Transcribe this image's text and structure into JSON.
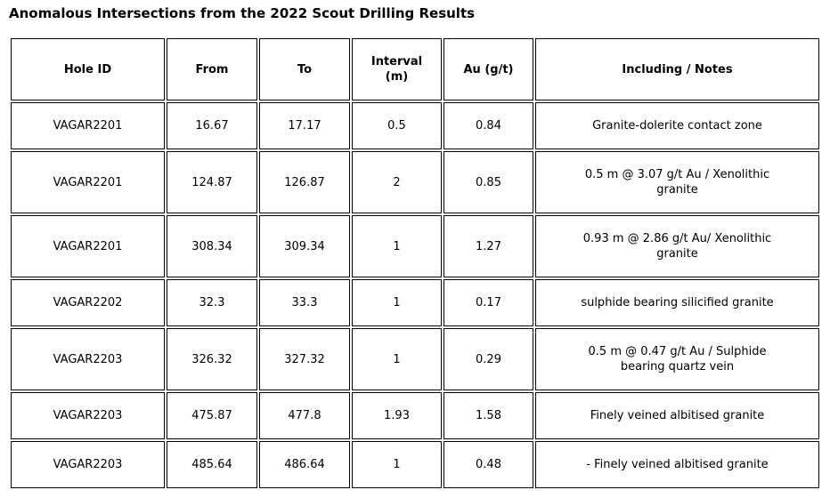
{
  "chart_data": {
    "type": "table",
    "title": "Anomalous Intersections from the 2022 Scout Drilling Results",
    "columns": [
      "Hole ID",
      "From",
      "To",
      "Interval\n(m)",
      "Au (g/t)",
      "Including / Notes"
    ],
    "column_keys": [
      "hole-id",
      "from",
      "to",
      "interval-m",
      "au-gpt",
      "including-notes"
    ],
    "rows": [
      [
        "VAGAR2201",
        "16.67",
        "17.17",
        "0.5",
        "0.84",
        "Granite-dolerite contact zone"
      ],
      [
        "VAGAR2201",
        "124.87",
        "126.87",
        "2",
        "0.85",
        "0.5 m @ 3.07 g/t Au / Xenolithic\ngranite"
      ],
      [
        "VAGAR2201",
        "308.34",
        "309.34",
        "1",
        "1.27",
        "0.93 m @ 2.86 g/t Au/ Xenolithic\ngranite"
      ],
      [
        "VAGAR2202",
        "32.3",
        "33.3",
        "1",
        "0.17",
        "sulphide bearing silicified granite"
      ],
      [
        "VAGAR2203",
        "326.32",
        "327.32",
        "1",
        "0.29",
        "0.5 m @ 0.47 g/t Au / Sulphide\nbearing quartz vein"
      ],
      [
        "VAGAR2203",
        "475.87",
        "477.8",
        "1.93",
        "1.58",
        "Finely veined albitised granite"
      ],
      [
        "VAGAR2203",
        "485.64",
        "486.64",
        "1",
        "0.48",
        "- Finely veined albitised granite"
      ]
    ]
  },
  "colors": {
    "text": "#000000",
    "border": "#000000",
    "background": "#ffffff"
  }
}
